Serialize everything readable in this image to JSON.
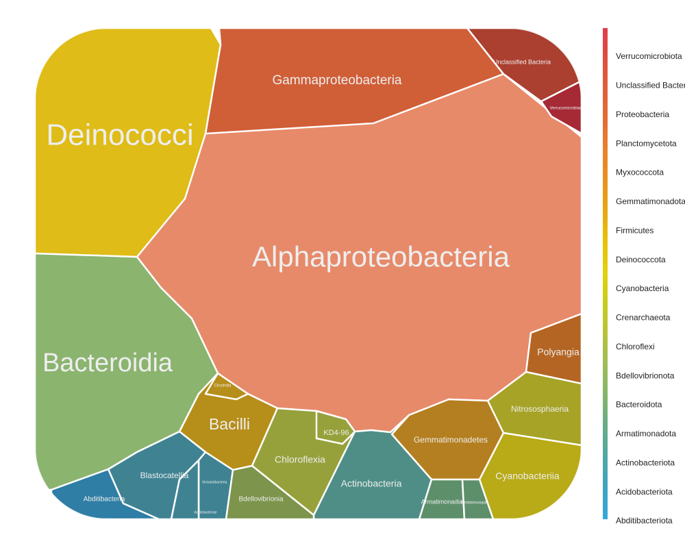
{
  "chart_data": {
    "type": "voronoi-treemap",
    "title": "",
    "level1_legend": [
      {
        "name": "Verrucomicrobiota",
        "color": "#e03c4a"
      },
      {
        "name": "Unclassified Bacteria",
        "color": "#df4f3c"
      },
      {
        "name": "Proteobacteria",
        "color": "#e0603a"
      },
      {
        "name": "Planctomycetota",
        "color": "#e36d32"
      },
      {
        "name": "Myxococcota",
        "color": "#e9822a"
      },
      {
        "name": "Gemmatimonadota",
        "color": "#e8921c"
      },
      {
        "name": "Firmicutes",
        "color": "#e7a812"
      },
      {
        "name": "Deinococcota",
        "color": "#e8c20a"
      },
      {
        "name": "Cyanobacteria",
        "color": "#e0d20c"
      },
      {
        "name": "Crenarchaeota",
        "color": "#c6cb1c"
      },
      {
        "name": "Chloroflexi",
        "color": "#b6c23a"
      },
      {
        "name": "Bdellovibrionota",
        "color": "#9fbb58"
      },
      {
        "name": "Bacteroidota",
        "color": "#82b46c"
      },
      {
        "name": "Armatimonadota",
        "color": "#66ac88"
      },
      {
        "name": "Actinobacteriota",
        "color": "#4ea8a4"
      },
      {
        "name": "Acidobacteriota",
        "color": "#3ea4c2"
      },
      {
        "name": "Abditibacteriota",
        "color": "#33a8dc"
      }
    ],
    "cells": [
      {
        "name": "Alphaproteobacteria",
        "label": "Alphaproteobacteria",
        "phylum": "Proteobacteria",
        "color": "#e78a6a"
      },
      {
        "name": "Gammaproteobacteria",
        "label": "Gammaproteobacteria",
        "phylum": "Proteobacteria",
        "color": "#d05e37"
      },
      {
        "name": "Deinococci",
        "label": "Deinococci",
        "phylum": "Deinococcota",
        "color": "#dfbc17"
      },
      {
        "name": "Bacteroidia",
        "label": "Bacteroidia",
        "phylum": "Bacteroidota",
        "color": "#8bb46f"
      },
      {
        "name": "Unclassified Bacteria",
        "label": "Unclassified Bacteria",
        "phylum": "Unclassified Bacteria",
        "color": "#ab4030"
      },
      {
        "name": "Verrucomicrobiae",
        "label": "Verrucomicrobiae",
        "phylum": "Verrucomicrobiota",
        "color": "#a52a36"
      },
      {
        "name": "Polyangia",
        "label": "Polyangia",
        "phylum": "Myxococcota",
        "color": "#b46523"
      },
      {
        "name": "Nitrososphaeria",
        "label": "Nitrososphaeria",
        "phylum": "Crenarchaeota",
        "color": "#a6a327"
      },
      {
        "name": "Gemmatimonadetes",
        "label": "Gemmatimonadetes",
        "phylum": "Gemmatimonadota",
        "color": "#b47f20"
      },
      {
        "name": "Cyanobacteriia",
        "label": "Cyanobacteriia",
        "phylum": "Cyanobacteria",
        "color": "#b9aa17"
      },
      {
        "name": "Bacilli",
        "label": "Bacilli",
        "phylum": "Firmicutes",
        "color": "#b68e1a"
      },
      {
        "name": "Clostridia",
        "label": "Clostridia",
        "phylum": "Firmicutes",
        "color": "#b68e1a"
      },
      {
        "name": "Chloroflexia",
        "label": "Chloroflexia",
        "phylum": "Chloroflexi",
        "color": "#96a13b"
      },
      {
        "name": "KD4-96",
        "label": "KD4-96",
        "phylum": "Chloroflexi",
        "color": "#96a13b"
      },
      {
        "name": "Actinobacteria",
        "label": "Actinobacteria",
        "phylum": "Actinobacteriota",
        "color": "#4f8e87"
      },
      {
        "name": "Armatimonadia",
        "label": "Armatimonadia",
        "phylum": "Armatimonadota",
        "color": "#5d8f6b"
      },
      {
        "name": "Fimbriimonadia",
        "label": "Fimbriimonadia",
        "phylum": "Armatimonadota",
        "color": "#5d8f6b"
      },
      {
        "name": "Blastocatellia",
        "label": "Blastocatellia",
        "phylum": "Acidobacteriota",
        "color": "#3f8393"
      },
      {
        "name": "Vicinamibacteria",
        "label": "Vicinamibacteria",
        "phylum": "Acidobacteriota",
        "color": "#3f8393"
      },
      {
        "name": "Acidobacteriae",
        "label": "Acidobacteriae",
        "phylum": "Acidobacteriota",
        "color": "#3f8393"
      },
      {
        "name": "Bdellovibrionia",
        "label": "Bdellovibrionia",
        "phylum": "Bdellovibrionota",
        "color": "#7d944c"
      },
      {
        "name": "Abditibacteria",
        "label": "Abditibacteria",
        "phylum": "Abditibacteriota",
        "color": "#2f7ea5"
      }
    ]
  }
}
